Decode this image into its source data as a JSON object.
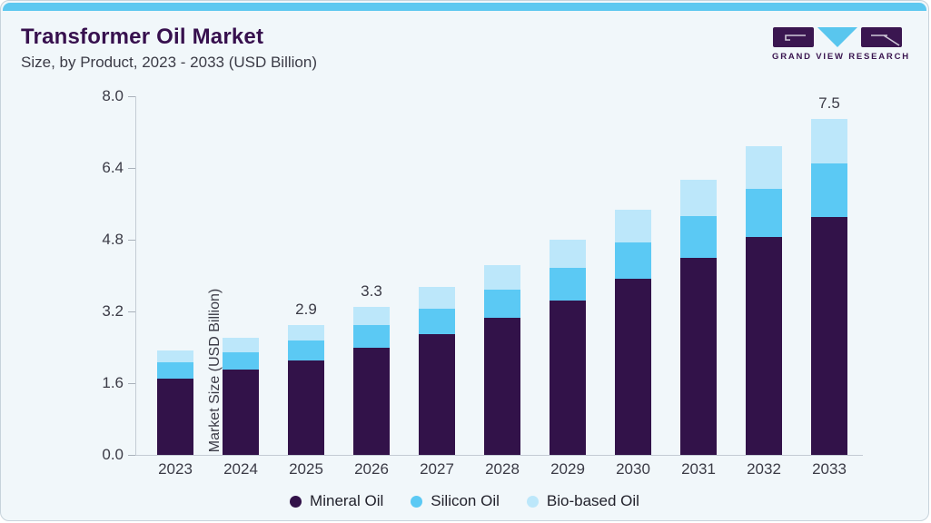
{
  "header": {
    "title": "Transformer Oil Market",
    "subtitle": "Size, by Product, 2023 - 2033 (USD Billion)",
    "brand_name": "GRAND VIEW RESEARCH"
  },
  "colors": {
    "accent_strip": "#5EC8F0",
    "title_purple": "#37104E",
    "brand_purple": "#3A1650",
    "logo_triangle_blue": "#59C6EE",
    "card_background": "#F1F7FA",
    "card_border": "#C7D3DB",
    "axis_line": "#C4CCD4",
    "text_gray": "#3B3B46",
    "mineral_oil": "#321249",
    "silicon_oil": "#5BC9F4",
    "bio_based_oil": "#BCE7FA"
  },
  "chart_data": {
    "type": "bar",
    "stacked": true,
    "title": "Transformer Oil Market Size, by Product, 2023 - 2033 (USD Billion)",
    "categories": [
      "2023",
      "2024",
      "2025",
      "2026",
      "2027",
      "2028",
      "2029",
      "2030",
      "2031",
      "2032",
      "2033"
    ],
    "series": [
      {
        "name": "Mineral Oil",
        "color": "#321249",
        "values": [
          1.7,
          1.9,
          2.1,
          2.4,
          2.7,
          3.05,
          3.45,
          3.92,
          4.4,
          4.87,
          5.3
        ]
      },
      {
        "name": "Silicon Oil",
        "color": "#5BC9F4",
        "values": [
          0.36,
          0.39,
          0.45,
          0.5,
          0.57,
          0.63,
          0.73,
          0.81,
          0.93,
          1.07,
          1.2
        ]
      },
      {
        "name": "Bio-based Oil",
        "color": "#BCE7FA",
        "values": [
          0.27,
          0.32,
          0.35,
          0.4,
          0.48,
          0.55,
          0.62,
          0.73,
          0.8,
          0.94,
          1.0
        ]
      }
    ],
    "totals": [
      2.33,
      2.61,
      2.9,
      3.3,
      3.75,
      4.23,
      4.8,
      5.46,
      6.13,
      6.88,
      7.5
    ],
    "bar_labels": [
      "",
      "",
      "2.9",
      "3.3",
      "",
      "",
      "",
      "",
      "",
      "",
      "7.5"
    ],
    "xlabel": "",
    "ylabel": "Market Size (USD Billion)",
    "ylim": [
      0,
      8.0
    ],
    "yticks": [
      "0.0",
      "1.6",
      "3.2",
      "4.8",
      "6.4",
      "8.0"
    ],
    "grid": false,
    "legend_position": "bottom"
  }
}
